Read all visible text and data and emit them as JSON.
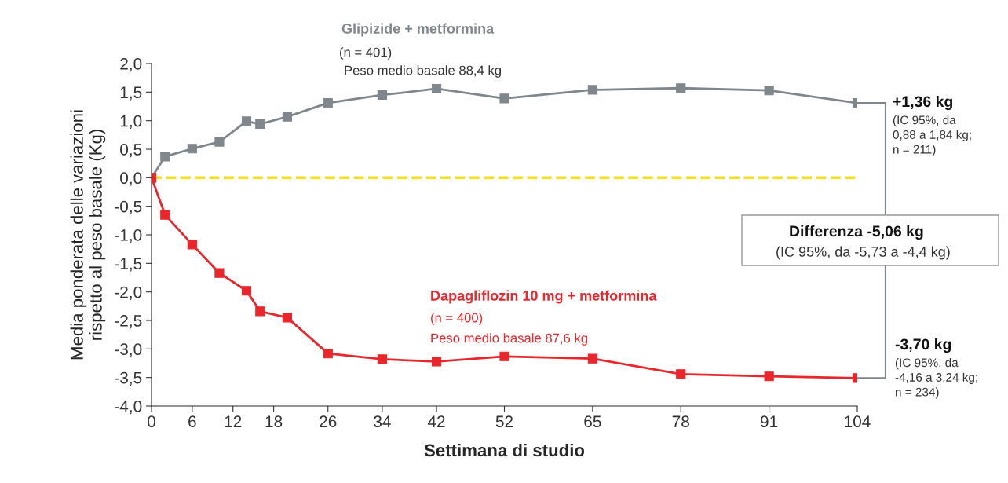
{
  "chart_data": {
    "type": "line",
    "xlabel": "Settimana di studio",
    "ylabel": "Media ponderata delle variazioni\nrispetto al peso basale (Kg)",
    "x": [
      0,
      2,
      6,
      10,
      14,
      16,
      20,
      26,
      34,
      42,
      52,
      65,
      78,
      91,
      104
    ],
    "series": [
      {
        "name": "Glipizide + metformina",
        "color": "#7f868c",
        "values": [
          0,
          0.37,
          0.51,
          0.63,
          0.99,
          0.94,
          1.07,
          1.31,
          1.45,
          1.56,
          1.39,
          1.54,
          1.57,
          1.53,
          1.31
        ]
      },
      {
        "name": "Dapagliflozin 10 mg + metformina",
        "color": "#e8262b",
        "values": [
          0,
          -0.65,
          -1.17,
          -1.67,
          -1.98,
          -2.34,
          -2.45,
          -3.08,
          -3.18,
          -3.22,
          -3.13,
          -3.17,
          -3.44,
          -3.48,
          -3.51
        ]
      }
    ],
    "marker": "square",
    "line_style": "solid",
    "grid": false,
    "legend": false,
    "xlim": [
      0,
      104
    ],
    "xticks": [
      0,
      6,
      12,
      18,
      26,
      34,
      42,
      52,
      65,
      78,
      91,
      104
    ],
    "ylim": [
      -4,
      2
    ],
    "yticks": [
      {
        "value": 2,
        "label": "2,0"
      },
      {
        "value": 1.5,
        "label": "1,5"
      },
      {
        "value": 1,
        "label": "1,0"
      },
      {
        "value": 0.5,
        "label": "0,5"
      },
      {
        "value": 0,
        "label": "0,0"
      },
      {
        "value": -0.5,
        "label": "-0,5"
      },
      {
        "value": -1,
        "label": "-1,0"
      },
      {
        "value": -1.5,
        "label": "-1,5"
      },
      {
        "value": -2,
        "label": "-2,0"
      },
      {
        "value": -2.5,
        "label": "-2,5"
      },
      {
        "value": -3,
        "label": "-3,0"
      },
      {
        "value": -3.5,
        "label": "-3,5"
      },
      {
        "value": -4,
        "label": "-4,0"
      }
    ],
    "ref_lines": [
      {
        "axis": "y",
        "value": 0,
        "color": "#f2e21c",
        "line_style": "dashed"
      }
    ],
    "annotations": [
      "(n = 401)",
      "Peso medio basale 88,4 kg",
      "(n = 400)",
      "Peso medio basale 87,6 kg",
      "+1,36 kg",
      "(IC 95%, da\n0,88 a 1,84 kg;\nn = 211)",
      "Differenza -5,06 kg",
      "(IC 95%, da -5,73 a -4,4 kg)",
      "-3,70 kg",
      "(IC 95%, da\n-4,16 a 3,24 kg;\nn = 234)"
    ]
  }
}
